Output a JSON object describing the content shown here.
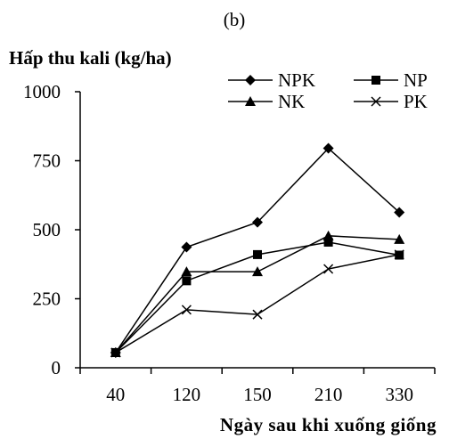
{
  "chart_data": {
    "type": "line",
    "panel_label": "(b)",
    "title": "",
    "ylabel": "Hấp thu kali (kg/ha)",
    "xlabel": "Ngày sau khi xuống giống",
    "categories": [
      "40",
      "120",
      "150",
      "210",
      "330"
    ],
    "ylim": [
      0,
      1000
    ],
    "yticks": [
      0,
      250,
      500,
      750,
      1000
    ],
    "grid": false,
    "legend_position": "top-right",
    "series": [
      {
        "name": "NPK",
        "marker": "diamond",
        "values": [
          55,
          437,
          527,
          795,
          563
        ]
      },
      {
        "name": "NP",
        "marker": "square",
        "values": [
          55,
          315,
          410,
          455,
          408
        ]
      },
      {
        "name": "NK",
        "marker": "triangle",
        "values": [
          55,
          348,
          348,
          478,
          465
        ]
      },
      {
        "name": "PK",
        "marker": "x",
        "values": [
          55,
          210,
          193,
          358,
          410
        ]
      }
    ]
  }
}
